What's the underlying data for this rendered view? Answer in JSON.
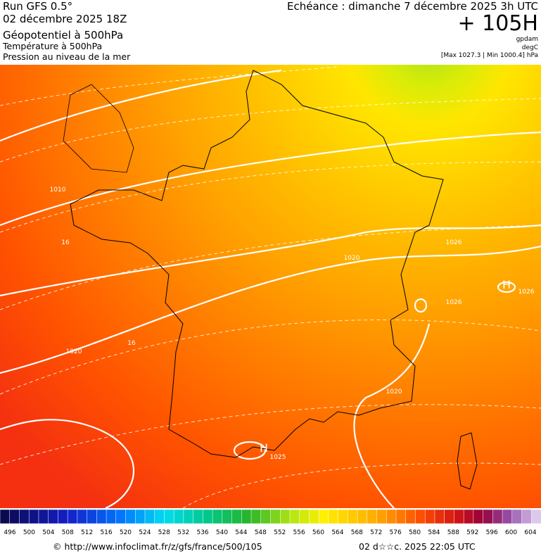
{
  "header": {
    "run": "Run GFS 0.5°",
    "date": "02 décembre 2025 18Z",
    "field1": "Géopotentiel à 500hPa",
    "field2": "Température à 500hPa",
    "field3": "Pression au niveau de la mer",
    "valid": "Echéance : dimanche 7 décembre 2025 3h UTC",
    "lead": "+ 105H",
    "unit1": "gpdam",
    "unit2": "degC",
    "range": "[Max 1027.3 | Min 1000.4] hPa"
  },
  "map_labels": [
    "1010",
    "1020",
    "1020",
    "1020",
    "1025",
    "1026",
    "1026",
    "1026",
    "16",
    "16",
    "H",
    "H"
  ],
  "colorbar": {
    "labels": [
      496,
      500,
      504,
      508,
      512,
      516,
      520,
      524,
      528,
      532,
      536,
      540,
      544,
      548,
      552,
      556,
      560,
      564,
      568,
      572,
      576,
      580,
      584,
      588,
      592,
      596,
      600,
      604
    ]
  },
  "footer": {
    "url": "© http://www.infoclimat.fr/z/gfs/france/500/105",
    "stamp": "02 d☆☆c. 2025 22:05 UTC"
  }
}
